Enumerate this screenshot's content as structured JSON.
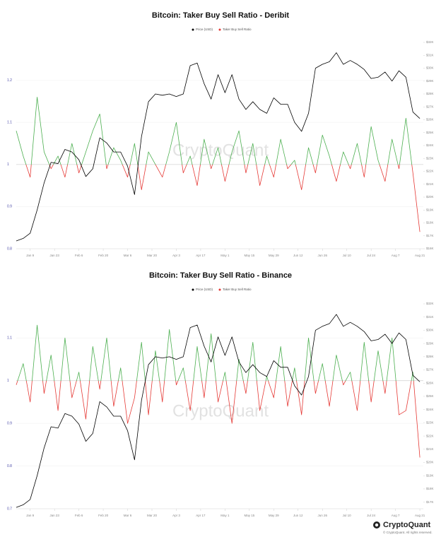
{
  "chart_data": [
    {
      "type": "line",
      "title": "Bitcoin: Taker Buy Sell Ratio - Deribit",
      "watermark": "CryptoQuant",
      "x": [
        "Jan 1",
        "Jan 5",
        "Jan 9",
        "Jan 13",
        "Jan 17",
        "Jan 21",
        "Jan 25",
        "Jan 29",
        "Feb 2",
        "Feb 6",
        "Feb 10",
        "Feb 14",
        "Feb 18",
        "Feb 22",
        "Feb 26",
        "Mar 2",
        "Mar 6",
        "Mar 10",
        "Mar 14",
        "Mar 18",
        "Mar 22",
        "Mar 26",
        "Mar 30",
        "Apr 3",
        "Apr 7",
        "Apr 11",
        "Apr 15",
        "Apr 19",
        "Apr 23",
        "Apr 27",
        "May 1",
        "May 5",
        "May 9",
        "May 13",
        "May 17",
        "May 21",
        "May 25",
        "May 29",
        "Jun 2",
        "Jun 6",
        "Jun 10",
        "Jun 14",
        "Jun 18",
        "Jun 22",
        "Jun 26",
        "Jun 30",
        "Jul 4",
        "Jul 8",
        "Jul 12",
        "Jul 16",
        "Jul 20",
        "Jul 24",
        "Jul 28",
        "Aug 1",
        "Aug 5",
        "Aug 9",
        "Aug 13",
        "Aug 17",
        "Aug 21"
      ],
      "xlim": [
        "Jan 1",
        "Aug 23"
      ],
      "xticks": [
        "Jan 9",
        "Jan 23",
        "Feb 6",
        "Feb 20",
        "Mar 6",
        "Mar 20",
        "Apr 3",
        "Apr 17",
        "May 1",
        "May 15",
        "May 29",
        "Jun 12",
        "Jun 26",
        "Jul 10",
        "Jul 24",
        "Aug 7",
        "Aug 21"
      ],
      "ylim": [
        0.8,
        1.29
      ],
      "yticks": [
        0.8,
        0.9,
        1,
        1.1,
        1.2
      ],
      "y2lim": [
        16000,
        32000
      ],
      "y2ticks": [
        {
          "value": 16000,
          "label": "$16K"
        },
        {
          "value": 17000,
          "label": "$17K"
        },
        {
          "value": 18000,
          "label": "$18K"
        },
        {
          "value": 19000,
          "label": "$19K"
        },
        {
          "value": 20000,
          "label": "$20K"
        },
        {
          "value": 21000,
          "label": "$21K"
        },
        {
          "value": 22000,
          "label": "$22K"
        },
        {
          "value": 23000,
          "label": "$23K"
        },
        {
          "value": 24000,
          "label": "$24K"
        },
        {
          "value": 25000,
          "label": "$25K"
        },
        {
          "value": 26000,
          "label": "$26K"
        },
        {
          "value": 27000,
          "label": "$27K"
        },
        {
          "value": 28000,
          "label": "$28K"
        },
        {
          "value": 29000,
          "label": "$29K"
        },
        {
          "value": 30000,
          "label": "$30K"
        },
        {
          "value": 31000,
          "label": "$31K"
        },
        {
          "value": 32000,
          "label": "$32K"
        }
      ],
      "threshold": 1,
      "grid": true,
      "series": [
        {
          "name": "Price (USD)",
          "color": "#000000",
          "axis": "y2",
          "values": [
            16600,
            16800,
            17200,
            19000,
            21100,
            22700,
            22600,
            23700,
            23500,
            22900,
            21600,
            22200,
            24600,
            24200,
            23500,
            23500,
            22400,
            20200,
            24700,
            27400,
            28000,
            27900,
            28000,
            27800,
            28000,
            30200,
            30400,
            28800,
            27600,
            29500,
            28100,
            29500,
            27600,
            26800,
            27400,
            26800,
            26500,
            27700,
            27200,
            27200,
            25800,
            25100,
            26500,
            30000,
            30300,
            30500,
            31200,
            30300,
            30600,
            30300,
            29900,
            29200,
            29300,
            29700,
            29000,
            29800,
            29300,
            26600,
            26100
          ]
        },
        {
          "name": "Taker Buy Sell Ratio",
          "color_above": "#4caf50",
          "color_below": "#e53935",
          "values": [
            1.08,
            1.02,
            0.97,
            1.16,
            1.03,
            0.99,
            1.02,
            0.97,
            1.05,
            0.98,
            1.03,
            1.08,
            1.12,
            0.99,
            1.04,
            1.01,
            0.97,
            1.05,
            0.94,
            1.03,
            1.0,
            0.97,
            1.03,
            1.1,
            0.98,
            1.02,
            0.95,
            1.06,
            0.99,
            1.04,
            0.96,
            1.03,
            1.08,
            0.98,
            1.05,
            0.95,
            1.02,
            0.97,
            1.06,
            0.99,
            1.01,
            0.94,
            1.04,
            0.98,
            1.07,
            1.02,
            0.96,
            1.03,
            0.99,
            1.05,
            0.97,
            1.09,
            1.01,
            0.96,
            1.06,
            0.99,
            1.11,
            0.98,
            0.84
          ]
        }
      ]
    },
    {
      "type": "line",
      "title": "Bitcoin: Taker Buy Sell Ratio - Binance",
      "watermark": "CryptoQuant",
      "x": [
        "Jan 1",
        "Jan 5",
        "Jan 9",
        "Jan 13",
        "Jan 17",
        "Jan 21",
        "Jan 25",
        "Jan 29",
        "Feb 2",
        "Feb 6",
        "Feb 10",
        "Feb 14",
        "Feb 18",
        "Feb 22",
        "Feb 26",
        "Mar 2",
        "Mar 6",
        "Mar 10",
        "Mar 14",
        "Mar 18",
        "Mar 22",
        "Mar 26",
        "Mar 30",
        "Apr 3",
        "Apr 7",
        "Apr 11",
        "Apr 15",
        "Apr 19",
        "Apr 23",
        "Apr 27",
        "May 1",
        "May 5",
        "May 9",
        "May 13",
        "May 17",
        "May 21",
        "May 25",
        "May 29",
        "Jun 2",
        "Jun 6",
        "Jun 10",
        "Jun 14",
        "Jun 18",
        "Jun 22",
        "Jun 26",
        "Jun 30",
        "Jul 4",
        "Jul 8",
        "Jul 12",
        "Jul 16",
        "Jul 20",
        "Jul 24",
        "Jul 28",
        "Aug 1",
        "Aug 5",
        "Aug 9",
        "Aug 13",
        "Aug 17",
        "Aug 21"
      ],
      "xlim": [
        "Jan 1",
        "Aug 23"
      ],
      "xticks": [
        "Jan 9",
        "Jan 23",
        "Feb 6",
        "Feb 20",
        "Mar 6",
        "Mar 20",
        "Apr 3",
        "Apr 17",
        "May 1",
        "May 15",
        "May 29",
        "Jun 12",
        "Jun 26",
        "Jul 10",
        "Jul 24",
        "Aug 7",
        "Aug 21"
      ],
      "ylim": [
        0.7,
        1.18
      ],
      "yticks": [
        0.7,
        0.8,
        0.9,
        1,
        1.1
      ],
      "y2lim": [
        16500,
        32000
      ],
      "y2ticks": [
        {
          "value": 17000,
          "label": "$17K"
        },
        {
          "value": 18000,
          "label": "$18K"
        },
        {
          "value": 19000,
          "label": "$19K"
        },
        {
          "value": 20000,
          "label": "$20K"
        },
        {
          "value": 21000,
          "label": "$21K"
        },
        {
          "value": 22000,
          "label": "$22K"
        },
        {
          "value": 23000,
          "label": "$23K"
        },
        {
          "value": 24000,
          "label": "$24K"
        },
        {
          "value": 25000,
          "label": "$25K"
        },
        {
          "value": 26000,
          "label": "$26K"
        },
        {
          "value": 27000,
          "label": "$27K"
        },
        {
          "value": 28000,
          "label": "$28K"
        },
        {
          "value": 29000,
          "label": "$29K"
        },
        {
          "value": 30000,
          "label": "$30K"
        },
        {
          "value": 31000,
          "label": "$31K"
        },
        {
          "value": 32000,
          "label": "$32K"
        }
      ],
      "threshold": 1,
      "grid": true,
      "series": [
        {
          "name": "Price (USD)",
          "color": "#000000",
          "axis": "y2",
          "values": [
            16600,
            16800,
            17200,
            19000,
            21100,
            22700,
            22600,
            23700,
            23500,
            22900,
            21600,
            22200,
            24600,
            24200,
            23500,
            23500,
            22400,
            20200,
            24700,
            27400,
            28000,
            27900,
            28000,
            27800,
            28000,
            30200,
            30400,
            28800,
            27600,
            29500,
            28100,
            29500,
            27600,
            26800,
            27400,
            26800,
            26500,
            27700,
            27200,
            27200,
            25800,
            25100,
            26500,
            30000,
            30300,
            30500,
            31200,
            30300,
            30600,
            30300,
            29900,
            29200,
            29300,
            29700,
            29000,
            29800,
            29300,
            26600,
            26100
          ]
        },
        {
          "name": "Taker Buy Sell Ratio",
          "color_above": "#4caf50",
          "color_below": "#e53935",
          "values": [
            0.99,
            1.04,
            0.95,
            1.13,
            0.97,
            1.06,
            0.93,
            1.1,
            0.96,
            1.02,
            0.91,
            1.08,
            0.98,
            1.1,
            0.94,
            1.03,
            0.9,
            0.96,
            1.09,
            0.92,
            1.07,
            0.95,
            1.12,
            0.99,
            1.03,
            0.93,
            1.08,
            0.96,
            1.11,
            0.95,
            1.02,
            0.9,
            1.05,
            0.97,
            1.09,
            0.93,
            1.01,
            0.96,
            1.08,
            0.94,
            1.03,
            0.92,
            1.1,
            0.97,
            1.04,
            0.94,
            1.06,
            0.99,
            1.02,
            0.93,
            1.09,
            0.95,
            1.07,
            0.97,
            1.1,
            0.92,
            0.93,
            1.02,
            0.82
          ]
        }
      ]
    }
  ],
  "footer": {
    "brand": "CryptoQuant",
    "copyright": "© CryptoQuant. All rights reserved."
  }
}
